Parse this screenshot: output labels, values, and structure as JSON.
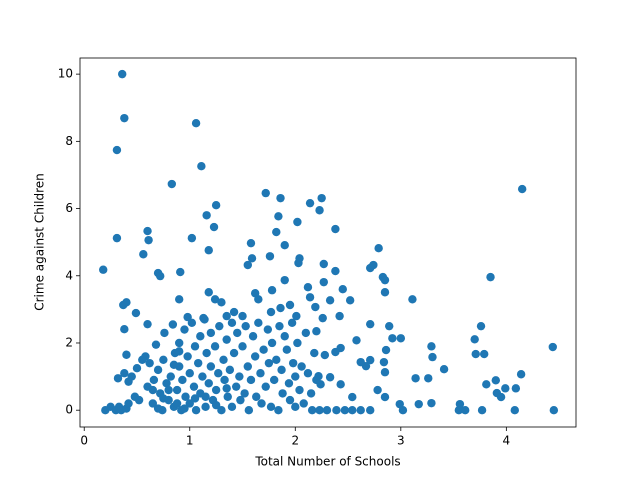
{
  "chart_data": {
    "type": "scatter",
    "xlabel": "Total Number of Schools",
    "ylabel": "Crime against Children",
    "color": "#1f77b4",
    "xlim": [
      -0.04,
      4.66
    ],
    "ylim": [
      -0.5,
      10.48
    ],
    "xticks": [
      0,
      1,
      2,
      3,
      4
    ],
    "yticks": [
      0,
      2,
      4,
      6,
      8,
      10
    ],
    "x": [
      0.36,
      0.38,
      0.31,
      1.06,
      1.11,
      0.83,
      4.15,
      1.72,
      1.86,
      2.25,
      1.25,
      2.14,
      2.23,
      1.16,
      1.84,
      2.02,
      1.23,
      2.38,
      0.6,
      1.82,
      0.31,
      1.02,
      0.61,
      1.58,
      1.9,
      2.79,
      1.18,
      0.56,
      1.76,
      2.04,
      1.59,
      2.03,
      2.27,
      1.55,
      2.74,
      2.71,
      0.91,
      2.38,
      0.7,
      0.18,
      0.72,
      2.83,
      2.85,
      3.85,
      1.9,
      2.27,
      2.12,
      2.45,
      2.85,
      1.78,
      1.18,
      0.9,
      1.24,
      3.11,
      1.3,
      2.52,
      0.4,
      0.37,
      1.62,
      1.65,
      1.95,
      2.33,
      2.14,
      1.42,
      1.77,
      1.86,
      2.19,
      0.49,
      0.98,
      1.13,
      1.35,
      1.5,
      2.01,
      2.26,
      2.42,
      0.38,
      0.6,
      2.71,
      2.89,
      3.76,
      2.2,
      2.58,
      2.92,
      3.0,
      3.7,
      3.29,
      4.44,
      3.3,
      3.71,
      3.79,
      2.86,
      3.41,
      4.14,
      3.14,
      3.26,
      3.9,
      3.81,
      2.78,
      3.99,
      4.09,
      3.91,
      3.95,
      3.17,
      3.29,
      2.99,
      3.02,
      3.56,
      3.55,
      3.61,
      3.77,
      4.08,
      4.45,
      2.54,
      2.47,
      2.71,
      2.62,
      2.16,
      2.23,
      2.3,
      2.39,
      2.54,
      2.85,
      2.67,
      2.71,
      2.62,
      2.85,
      2.84,
      2.43,
      2.38,
      2.28,
      2.22,
      2.33,
      2.43,
      2.24,
      0.2,
      0.25,
      0.3,
      0.33,
      0.35,
      0.4,
      0.42,
      0.32,
      0.38,
      0.42,
      0.4,
      0.45,
      0.48,
      0.5,
      0.55,
      0.58,
      0.52,
      0.6,
      0.62,
      0.65,
      0.66,
      0.68,
      0.7,
      0.72,
      0.74,
      0.75,
      0.76,
      0.78,
      0.8,
      0.82,
      0.84,
      0.85,
      0.86,
      0.88,
      0.9,
      0.9,
      0.92,
      0.93,
      0.95,
      0.96,
      0.98,
      1.0,
      1.0,
      1.02,
      1.04,
      1.05,
      1.06,
      1.08,
      1.1,
      1.1,
      1.12,
      1.14,
      1.15,
      1.16,
      1.18,
      1.2,
      1.2,
      1.22,
      1.24,
      1.25,
      1.27,
      1.28,
      1.3,
      1.32,
      1.33,
      1.35,
      1.36,
      1.38,
      1.4,
      1.4,
      1.42,
      1.44,
      1.45,
      1.47,
      1.48,
      1.5,
      1.52,
      1.53,
      1.55,
      1.56,
      1.58,
      1.6,
      1.62,
      1.63,
      1.65,
      1.67,
      1.68,
      1.7,
      1.72,
      1.74,
      1.75,
      1.77,
      1.78,
      1.8,
      1.82,
      1.84,
      1.85,
      1.87,
      1.88,
      1.9,
      1.92,
      1.94,
      1.95,
      1.97,
      1.98,
      2.0,
      2.0,
      2.02,
      2.04,
      2.06,
      2.08,
      2.1,
      2.12,
      2.15,
      2.18,
      2.2,
      0.7,
      0.8,
      0.85,
      0.95,
      1.05,
      1.15,
      0.88,
      0.75,
      0.65,
      0.9,
      1.25,
      1.35
    ],
    "values": [
      10.0,
      8.69,
      7.74,
      8.54,
      7.26,
      6.73,
      6.58,
      6.46,
      6.31,
      6.31,
      6.1,
      6.16,
      5.95,
      5.8,
      5.77,
      5.6,
      5.45,
      5.39,
      5.33,
      5.3,
      5.12,
      5.12,
      5.06,
      4.97,
      4.91,
      4.82,
      4.76,
      4.64,
      4.58,
      4.52,
      4.52,
      4.38,
      4.35,
      4.32,
      4.32,
      4.23,
      4.11,
      4.14,
      4.08,
      4.18,
      3.99,
      3.96,
      3.87,
      3.96,
      3.87,
      3.81,
      3.66,
      3.6,
      3.51,
      3.57,
      3.51,
      3.3,
      3.3,
      3.3,
      3.21,
      3.27,
      3.21,
      3.13,
      3.48,
      3.3,
      3.13,
      3.27,
      3.36,
      2.92,
      2.92,
      3.04,
      3.07,
      2.89,
      2.77,
      2.74,
      2.8,
      2.8,
      2.8,
      2.74,
      2.8,
      2.41,
      2.56,
      2.56,
      2.5,
      2.5,
      2.35,
      2.08,
      2.14,
      2.14,
      2.11,
      1.9,
      1.88,
      1.58,
      1.67,
      1.67,
      1.79,
      1.22,
      1.07,
      0.95,
      0.95,
      0.89,
      0.77,
      0.6,
      0.65,
      0.65,
      0.51,
      0.39,
      0.18,
      0.21,
      0.18,
      0,
      0.18,
      0,
      0,
      0,
      0,
      0,
      0,
      0,
      0,
      0,
      0,
      0,
      0,
      0,
      0.39,
      0.39,
      1.31,
      1.49,
      1.43,
      1.13,
      1.43,
      1.85,
      1.73,
      1.64,
      1.01,
      0.98,
      0.77,
      0.77,
      0,
      0.1,
      0,
      0.1,
      0,
      0.05,
      0.2,
      0.95,
      1.1,
      0.85,
      1.65,
      1.0,
      0.4,
      1.25,
      1.5,
      1.6,
      0.3,
      0.7,
      1.4,
      0.2,
      0.9,
      1.95,
      1.2,
      0.5,
      0.0,
      1.5,
      2.3,
      0.8,
      0.3,
      1.0,
      2.55,
      0.1,
      1.7,
      0.6,
      2.0,
      1.3,
      0.0,
      0.9,
      2.4,
      0.4,
      1.6,
      0.2,
      1.1,
      2.6,
      0.7,
      1.9,
      0.0,
      1.4,
      2.2,
      0.5,
      1.0,
      2.7,
      0.1,
      1.7,
      0.8,
      2.3,
      1.3,
      0.3,
      1.9,
      0.6,
      1.1,
      2.5,
      0.0,
      1.5,
      0.9,
      2.1,
      0.4,
      1.2,
      2.6,
      0.1,
      1.7,
      0.7,
      2.3,
      1.0,
      0.3,
      1.9,
      0.5,
      2.5,
      1.3,
      0.0,
      0.9,
      2.2,
      1.6,
      0.4,
      2.6,
      1.1,
      0.2,
      1.8,
      0.7,
      2.4,
      1.4,
      0.1,
      2.0,
      0.9,
      1.5,
      0.0,
      2.5,
      1.2,
      0.5,
      2.2,
      1.8,
      0.8,
      0.3,
      2.6,
      1.4,
      1.0,
      0.1,
      2.0,
      0.6,
      1.3,
      0.2,
      2.3,
      1.1,
      0.5,
      1.7,
      0.9,
      0.05,
      0.6,
      1.35,
      0.05,
      0.35,
      0.4,
      0.2,
      0.35,
      0.6,
      1.75,
      0.15,
      0.65
    ]
  }
}
